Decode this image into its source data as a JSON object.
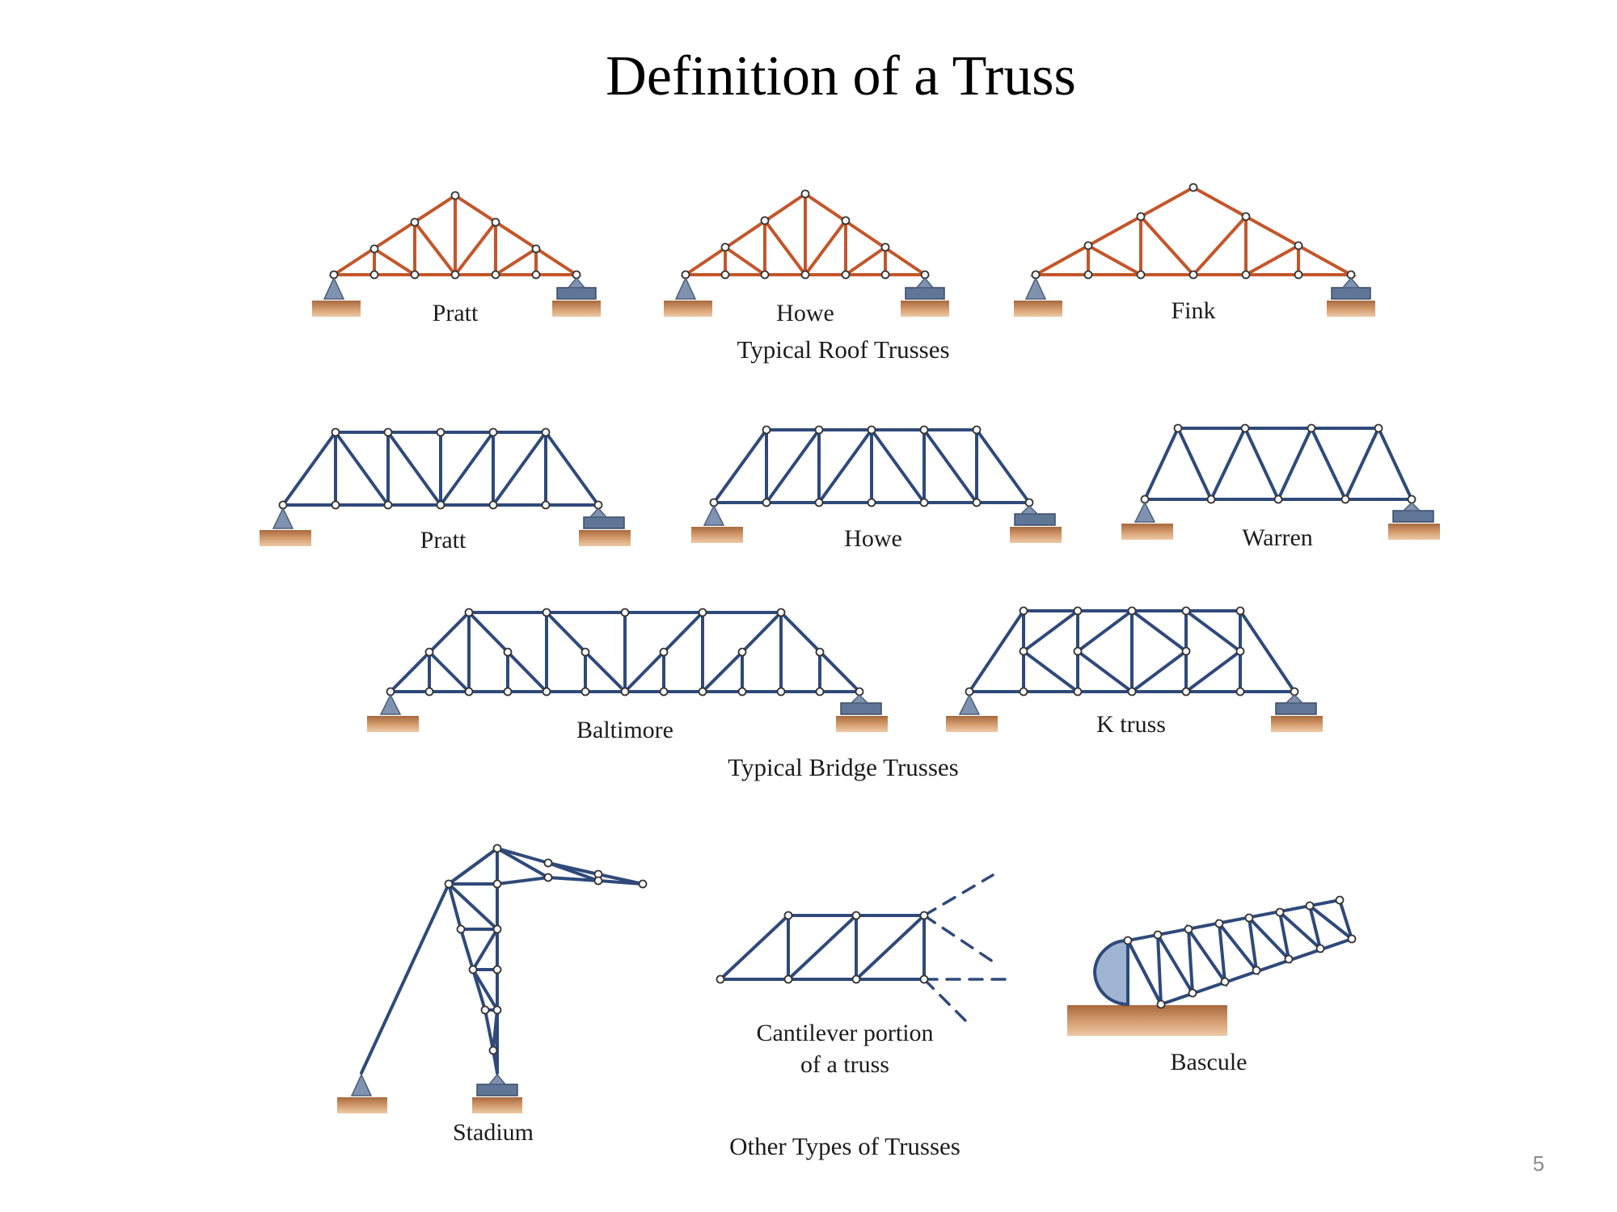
{
  "slide": {
    "title": "Definition of a Truss",
    "page_number": "5"
  },
  "roof": {
    "pratt": "Pratt",
    "howe": "Howe",
    "fink": "Fink",
    "group": "Typical Roof Trusses"
  },
  "bridge": {
    "pratt": "Pratt",
    "howe": "Howe",
    "warren": "Warren",
    "baltimore": "Baltimore",
    "ktruss": "K truss",
    "group": "Typical Bridge Trusses"
  },
  "other": {
    "stadium": "Stadium",
    "cantilever_1": "Cantilever portion",
    "cantilever_2": "of a truss",
    "bascule": "Bascule",
    "group": "Other Types of Trusses"
  },
  "colors": {
    "roof_member": "#c4562a",
    "bridge_member": "#2f4a7a",
    "support_fill": "#7f93b0",
    "ground": "#c98b5c",
    "title": "#000000"
  }
}
